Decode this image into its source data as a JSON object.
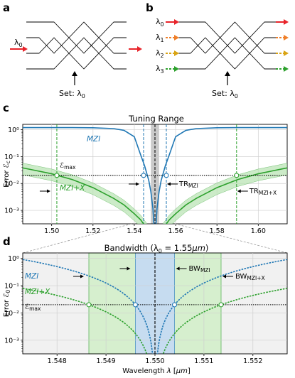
{
  "panels": {
    "a": {
      "label": "a",
      "input_label": "λ0",
      "set_label": "Set: λ0"
    },
    "b": {
      "label": "b",
      "input_labels": [
        "λ0",
        "λ1",
        "λ2",
        "λ3"
      ],
      "set_label": "Set: λ0"
    },
    "c": {
      "label": "c"
    },
    "d": {
      "label": "d"
    }
  },
  "colors": {
    "mzi": "#1f77b4",
    "mzi_x": "#2ca02c",
    "mzi_x_band": "#b7e3b1",
    "tr_band": "#bdbdbd",
    "bw_mzi_band": "#c6dcf0",
    "bw_mzix_band": "#d6efce",
    "arrows": [
      "#e8232a",
      "#f07f28",
      "#d9a414",
      "#2ca02c"
    ]
  },
  "chart_data": [
    {
      "type": "line",
      "title": "Tuning Range",
      "xlabel": "",
      "ylabel": "Error ℰc",
      "xlim": [
        1.486,
        1.614
      ],
      "ylim_log10": [
        -3.5,
        0.2
      ],
      "yscale": "log",
      "grid": true,
      "xticks": [
        1.5,
        1.52,
        1.54,
        1.56,
        1.58,
        1.6
      ],
      "xtick_labels": [
        "1.50",
        "1.52",
        "1.54",
        "1.56",
        "1.58",
        "1.60"
      ],
      "yticks_log10": [
        0,
        -1,
        -2,
        -3
      ],
      "ytick_labels": [
        "10⁰",
        "10⁻¹",
        "10⁻²",
        "10⁻³"
      ],
      "threshold": {
        "y": 0.02,
        "label": "ℰmax"
      },
      "center": 1.55,
      "series": [
        {
          "name": "MZI",
          "x": [
            1.486,
            1.5,
            1.51,
            1.52,
            1.53,
            1.535,
            1.54,
            1.543,
            1.545,
            1.547,
            1.548,
            1.549,
            1.5495,
            1.5505,
            1.551,
            1.552,
            1.553,
            1.555,
            1.557,
            1.56,
            1.565,
            1.57,
            1.58,
            1.59,
            1.6,
            1.614
          ],
          "y": [
            1.2,
            1.2,
            1.2,
            1.18,
            1.1,
            0.95,
            0.55,
            0.12,
            0.045,
            0.013,
            0.005,
            0.0012,
            0.0003,
            0.0003,
            0.0012,
            0.005,
            0.013,
            0.045,
            0.12,
            0.55,
            0.95,
            1.1,
            1.18,
            1.2,
            1.2,
            1.2
          ]
        },
        {
          "name": "MZI+X",
          "x": [
            1.486,
            1.49,
            1.5,
            1.51,
            1.52,
            1.53,
            1.535,
            1.54,
            1.543,
            1.546,
            1.548,
            1.549,
            1.5495,
            1.5505,
            1.551,
            1.552,
            1.554,
            1.557,
            1.56,
            1.565,
            1.57,
            1.58,
            1.59,
            1.6,
            1.614
          ],
          "y": [
            0.038,
            0.033,
            0.023,
            0.014,
            0.007,
            0.0028,
            0.0016,
            0.00075,
            0.00045,
            0.00022,
            0.00012,
            7e-05,
            4e-05,
            4e-05,
            7e-05,
            0.00012,
            0.00022,
            0.00045,
            0.00075,
            0.0016,
            0.0028,
            0.007,
            0.014,
            0.023,
            0.038
          ],
          "band": {
            "low_factor": 0.55,
            "high_factor": 1.5
          }
        }
      ],
      "markers": [
        {
          "x": 1.5025,
          "y": 0.02,
          "series": "MZI+X"
        },
        {
          "x": 1.5445,
          "y": 0.02,
          "series": "MZI"
        },
        {
          "x": 1.5555,
          "y": 0.02,
          "series": "MZI"
        },
        {
          "x": 1.5895,
          "y": 0.02,
          "series": "MZI+X"
        }
      ],
      "vlines": [
        {
          "x": 1.5025,
          "series": "MZI+X"
        },
        {
          "x": 1.5445,
          "series": "MZI"
        },
        {
          "x": 1.5555,
          "series": "MZI"
        },
        {
          "x": 1.5895,
          "series": "MZI+X"
        }
      ],
      "tr_band": [
        1.548,
        1.552
      ],
      "annotations": {
        "mzi_label": "MZI",
        "mzix_label": "MZI+X",
        "tr_mzi": "TR",
        "tr_mzi_sub": "MZI",
        "tr_mzix": "TR",
        "tr_mzix_sub": "MZI+X"
      }
    },
    {
      "type": "line",
      "title": "Bandwidth (λ0 = 1.55μm)",
      "xlabel": "Wavelength λ [μm]",
      "ylabel": "Error ℰ0",
      "xlim": [
        1.5473,
        1.5527
      ],
      "ylim_log10": [
        -3.5,
        0.2
      ],
      "yscale": "log",
      "grid": true,
      "xticks": [
        1.548,
        1.549,
        1.55,
        1.551,
        1.552
      ],
      "xtick_labels": [
        "1.548",
        "1.549",
        "1.550",
        "1.551",
        "1.552"
      ],
      "yticks_log10": [
        0,
        -1,
        -2,
        -3
      ],
      "ytick_labels": [
        "10⁰",
        "10⁻¹",
        "10⁻²",
        "10⁻³"
      ],
      "threshold": {
        "y": 0.02,
        "label": "ℰmax"
      },
      "center": 1.55,
      "series": [
        {
          "name": "MZI",
          "curve": "quadratic",
          "a": 0.02,
          "halfwidth": 0.0004,
          "floor": 0.00025
        },
        {
          "name": "MZI+X",
          "curve": "quadratic",
          "a": 0.02,
          "halfwidth": 0.00135,
          "floor": 0.00025
        }
      ],
      "markers": [
        {
          "x": 1.54865,
          "y": 0.02,
          "series": "MZI+X"
        },
        {
          "x": 1.5496,
          "y": 0.02,
          "series": "MZI"
        },
        {
          "x": 1.5504,
          "y": 0.02,
          "series": "MZI"
        },
        {
          "x": 1.55135,
          "y": 0.02,
          "series": "MZI+X"
        }
      ],
      "bw_mzi_band": [
        1.5496,
        1.5504
      ],
      "bw_mzix_band": [
        1.54865,
        1.55135
      ],
      "annotations": {
        "mzi_label": "MZI",
        "mzix_label": "MZI+X",
        "bw_mzi": "BW",
        "bw_mzi_sub": "MZI",
        "bw_mzix": "BW",
        "bw_mzix_sub": "MZI+X"
      }
    }
  ]
}
